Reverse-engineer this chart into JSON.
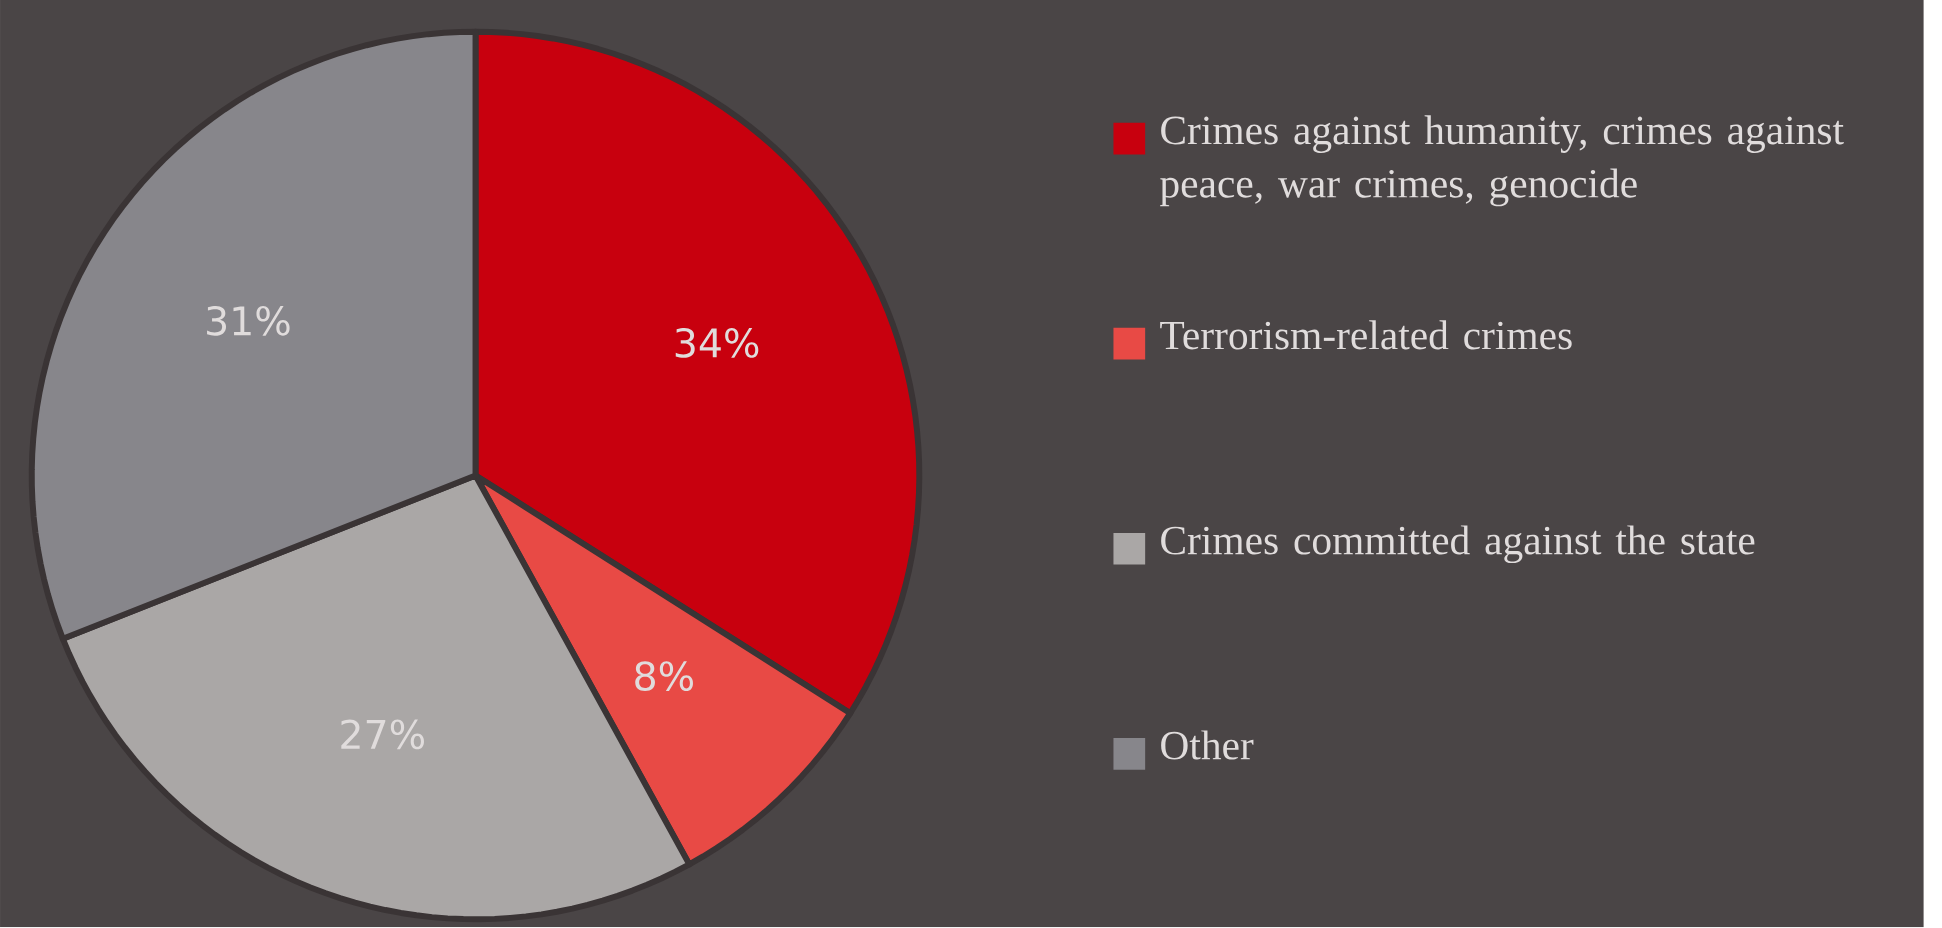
{
  "chart_data": {
    "type": "pie",
    "categories": [
      "Crimes against humanity, crimes against peace, war crimes, genocide",
      "Terrorism-related crimes",
      "Crimes committed against the state",
      "Other"
    ],
    "values": [
      34,
      8,
      27,
      31
    ],
    "colors": [
      "#c8000e",
      "#e84a45",
      "#aaa7a6",
      "#87868b"
    ],
    "value_labels": [
      "34%",
      "8%",
      "27%",
      "31%"
    ],
    "legend": "right"
  }
}
